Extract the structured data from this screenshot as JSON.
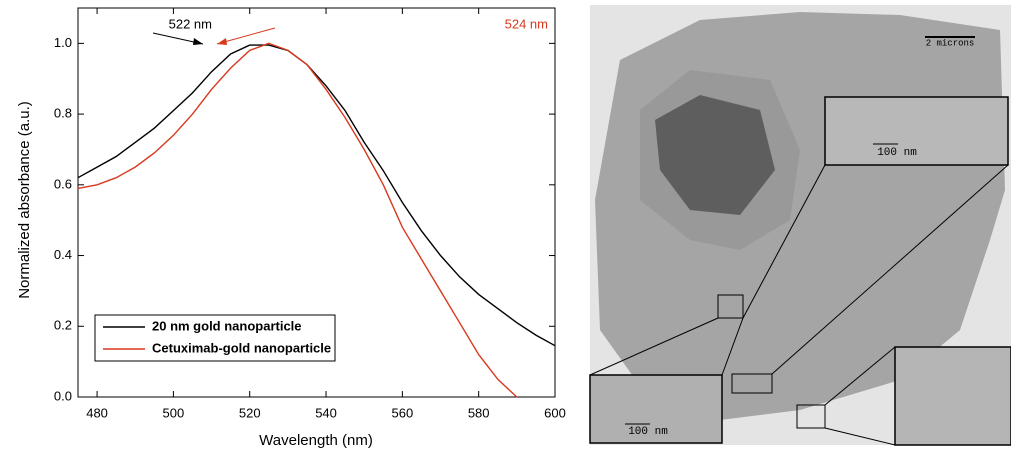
{
  "chart_data": {
    "type": "line",
    "xlabel": "Wavelength (nm)",
    "ylabel": "Normalized absorbance (a.u.)",
    "x": [
      475,
      480,
      485,
      490,
      495,
      500,
      505,
      510,
      515,
      520,
      525,
      530,
      535,
      540,
      545,
      550,
      555,
      560,
      565,
      570,
      575,
      580,
      585,
      590,
      595,
      600
    ],
    "series": [
      {
        "name": "20 nm gold nanoparticle",
        "color": "#000000",
        "values": [
          0.62,
          0.65,
          0.68,
          0.72,
          0.76,
          0.81,
          0.86,
          0.92,
          0.97,
          0.995,
          0.995,
          0.98,
          0.94,
          0.88,
          0.81,
          0.72,
          0.64,
          0.55,
          0.47,
          0.4,
          0.34,
          0.29,
          0.25,
          0.21,
          0.175,
          0.145
        ]
      },
      {
        "name": "Cetuximab-gold nanoparticle",
        "color": "#d9381e",
        "values": [
          0.59,
          0.6,
          0.62,
          0.65,
          0.69,
          0.74,
          0.8,
          0.87,
          0.93,
          0.98,
          1.0,
          0.98,
          0.94,
          0.87,
          0.79,
          0.7,
          0.6,
          0.48,
          0.39,
          0.3,
          0.21,
          0.12,
          0.05,
          0,
          null,
          null
        ]
      }
    ],
    "annotations": [
      {
        "text": "522 nm",
        "color": "#000000"
      },
      {
        "text": "524 nm",
        "color": "#d9381e"
      }
    ],
    "xlim": [
      475,
      600
    ],
    "xticks": [
      480,
      500,
      520,
      540,
      560,
      580,
      600
    ],
    "ylim": [
      0,
      1.1
    ],
    "yticks": [
      {
        "value": 0,
        "label": "0.0"
      },
      {
        "value": 0.2,
        "label": "0.2"
      },
      {
        "value": 0.4,
        "label": "0.4"
      },
      {
        "value": 0.6,
        "label": "0.6"
      },
      {
        "value": 0.8,
        "label": "0.8"
      },
      {
        "value": 1,
        "label": "1.0"
      }
    ],
    "legend": "lower-left"
  },
  "image": {
    "scale_labels": [
      "2 microns",
      "100 nm",
      "100 nm"
    ]
  }
}
